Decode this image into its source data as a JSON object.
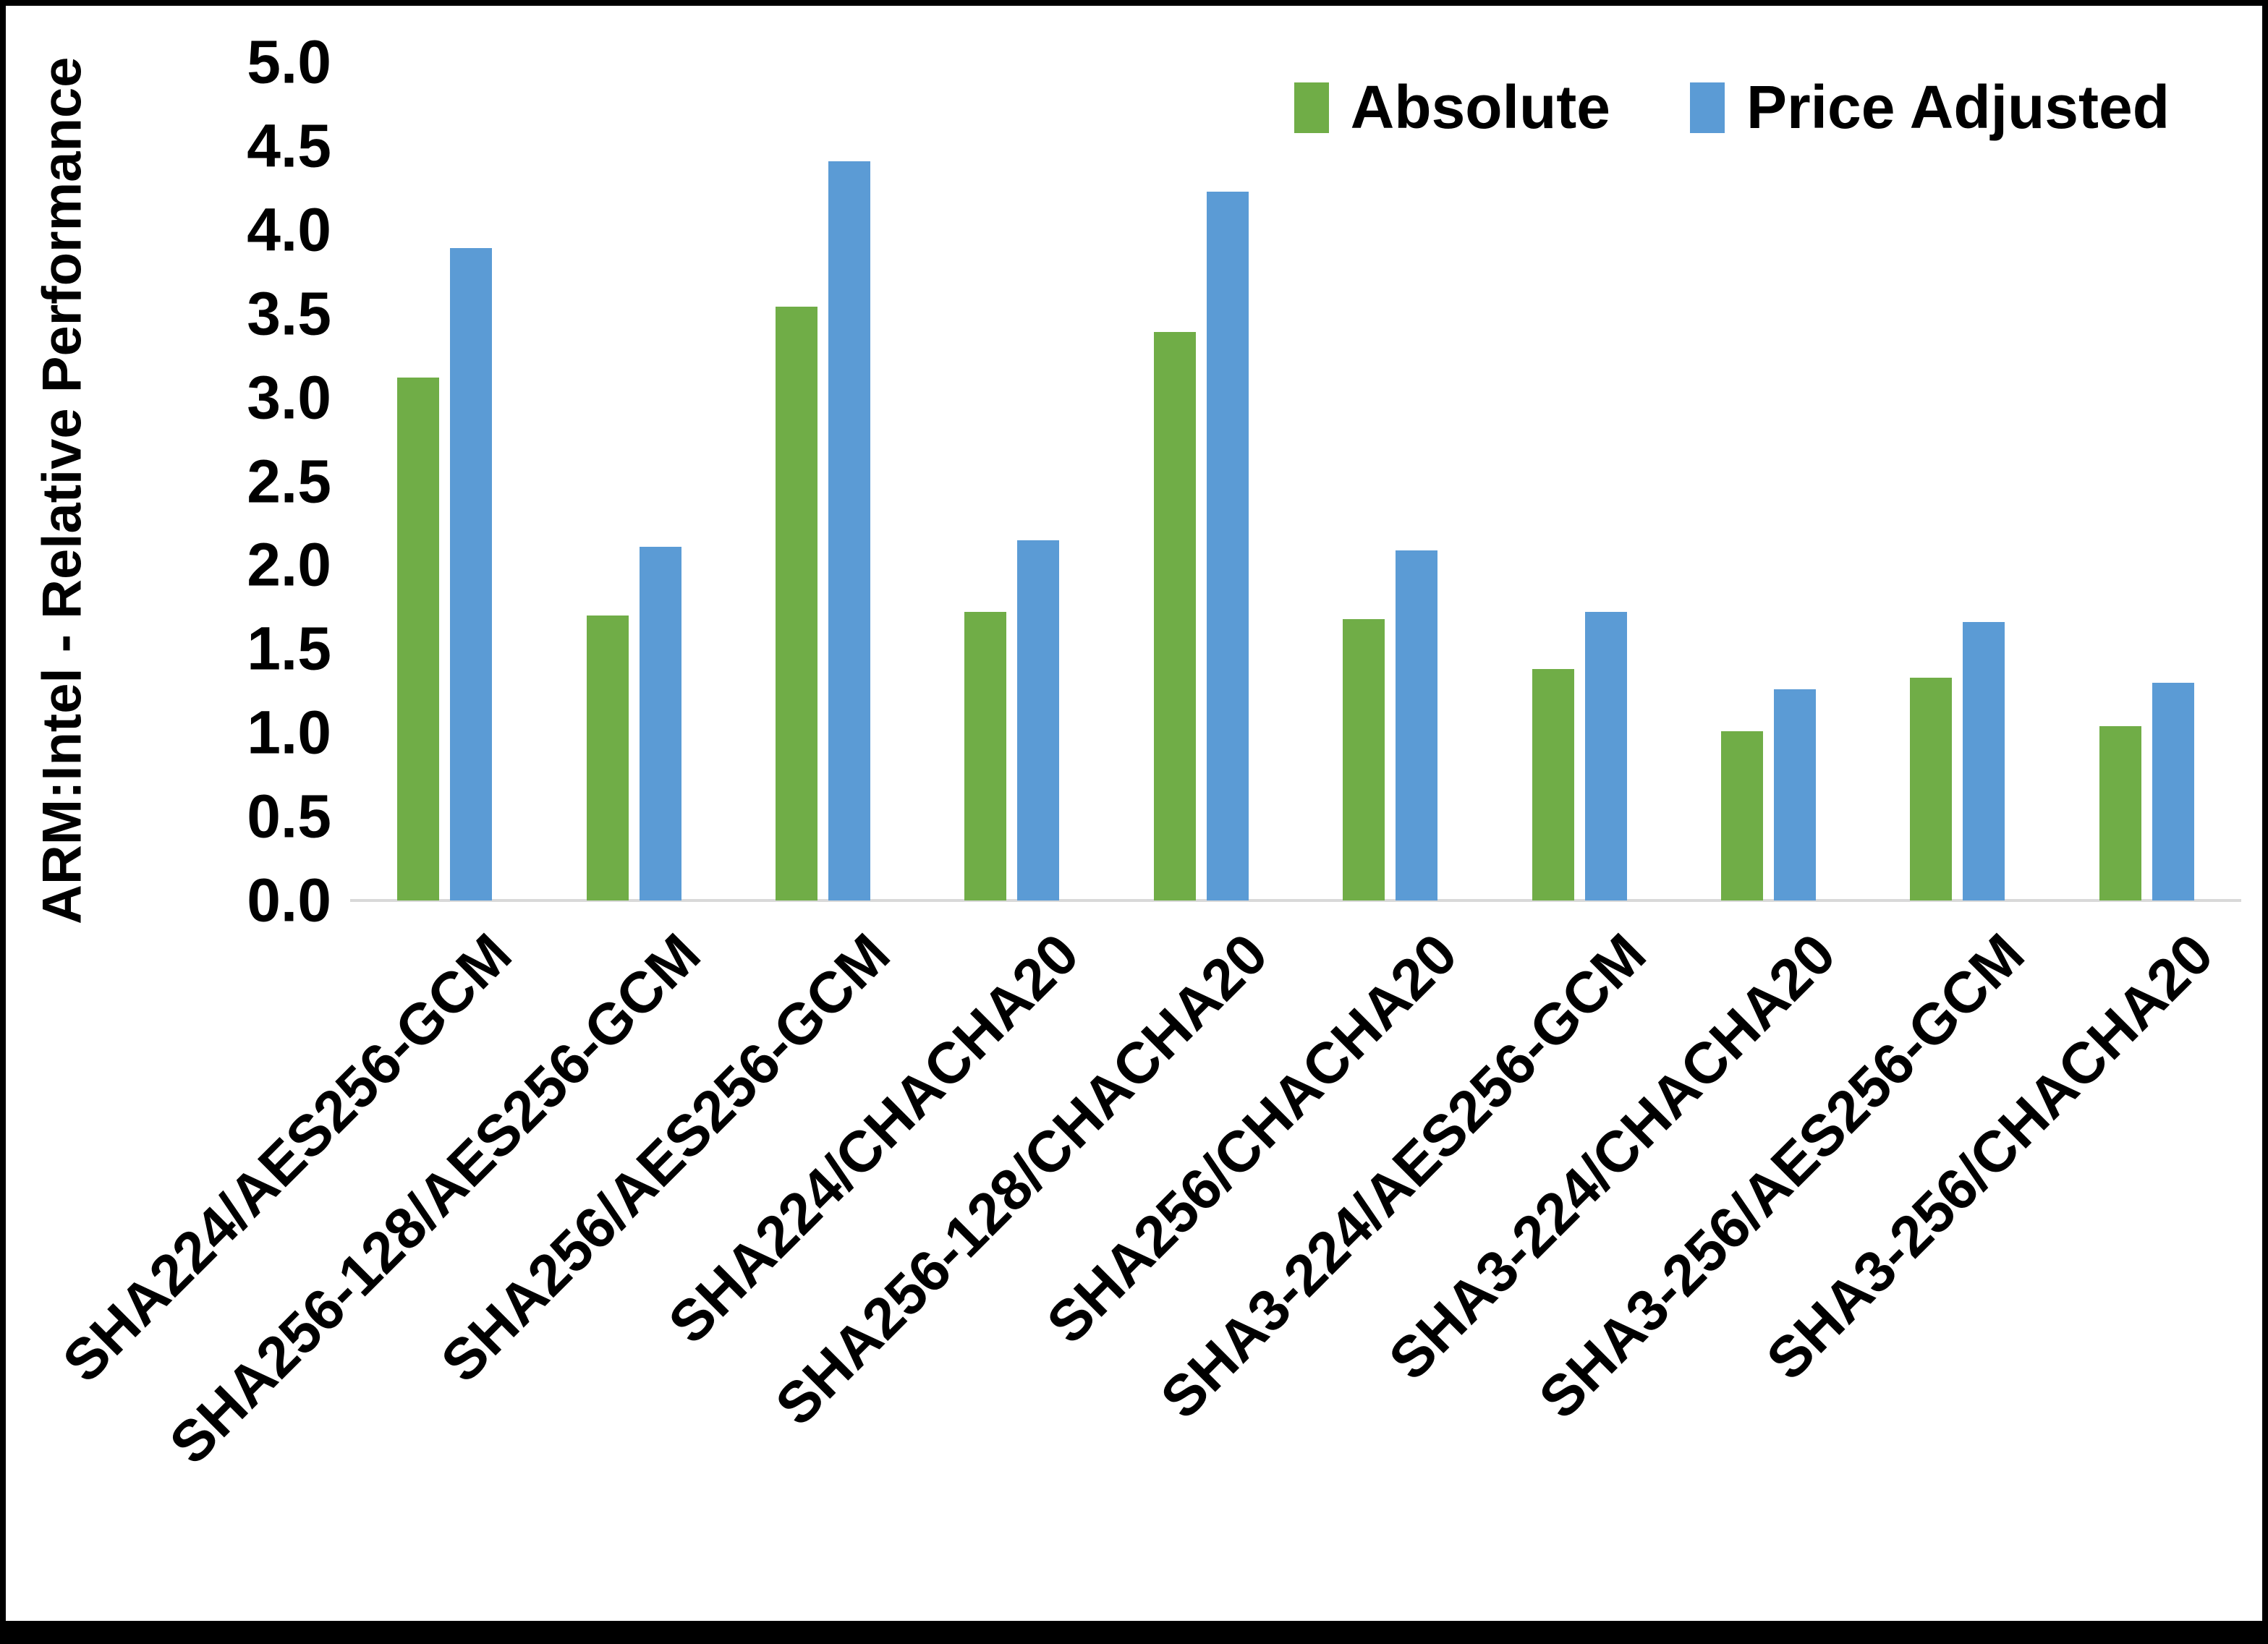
{
  "chart_data": {
    "type": "bar",
    "title": "",
    "xlabel": "",
    "ylabel": "ARM:Intel - Relative Performance",
    "ylim": [
      0,
      5
    ],
    "yticks": [
      "0.0",
      "0.5",
      "1.0",
      "1.5",
      "2.0",
      "2.5",
      "3.0",
      "3.5",
      "4.0",
      "4.5",
      "5.0"
    ],
    "grid": false,
    "legend": {
      "position": "top-right",
      "entries": [
        "Absolute",
        "Price Adjusted"
      ]
    },
    "categories": [
      "SHA224/AES256-GCM",
      "SHA256-128/AES256-GCM",
      "SHA256/AES256-GCM",
      "SHA224/CHACHA20",
      "SHA256-128/CHACHA20",
      "SHA256/CHACHA20",
      "SHA3-224/AES256-GCM",
      "SHA3-224/CHACHA20",
      "SHA3-256/AES256-GCM",
      "SHA3-256/CHACHA20"
    ],
    "series": [
      {
        "name": "Absolute",
        "color": "#70AD47",
        "values": [
          3.12,
          1.7,
          3.54,
          1.72,
          3.39,
          1.68,
          1.38,
          1.01,
          1.33,
          1.04
        ]
      },
      {
        "name": "Price Adjusted",
        "color": "#5B9BD5",
        "values": [
          3.89,
          2.11,
          4.41,
          2.15,
          4.23,
          2.09,
          1.72,
          1.26,
          1.66,
          1.3
        ]
      }
    ],
    "axis_line_color": "#D9D9D9",
    "background": "#FFFFFF",
    "border_color": "#000000"
  }
}
